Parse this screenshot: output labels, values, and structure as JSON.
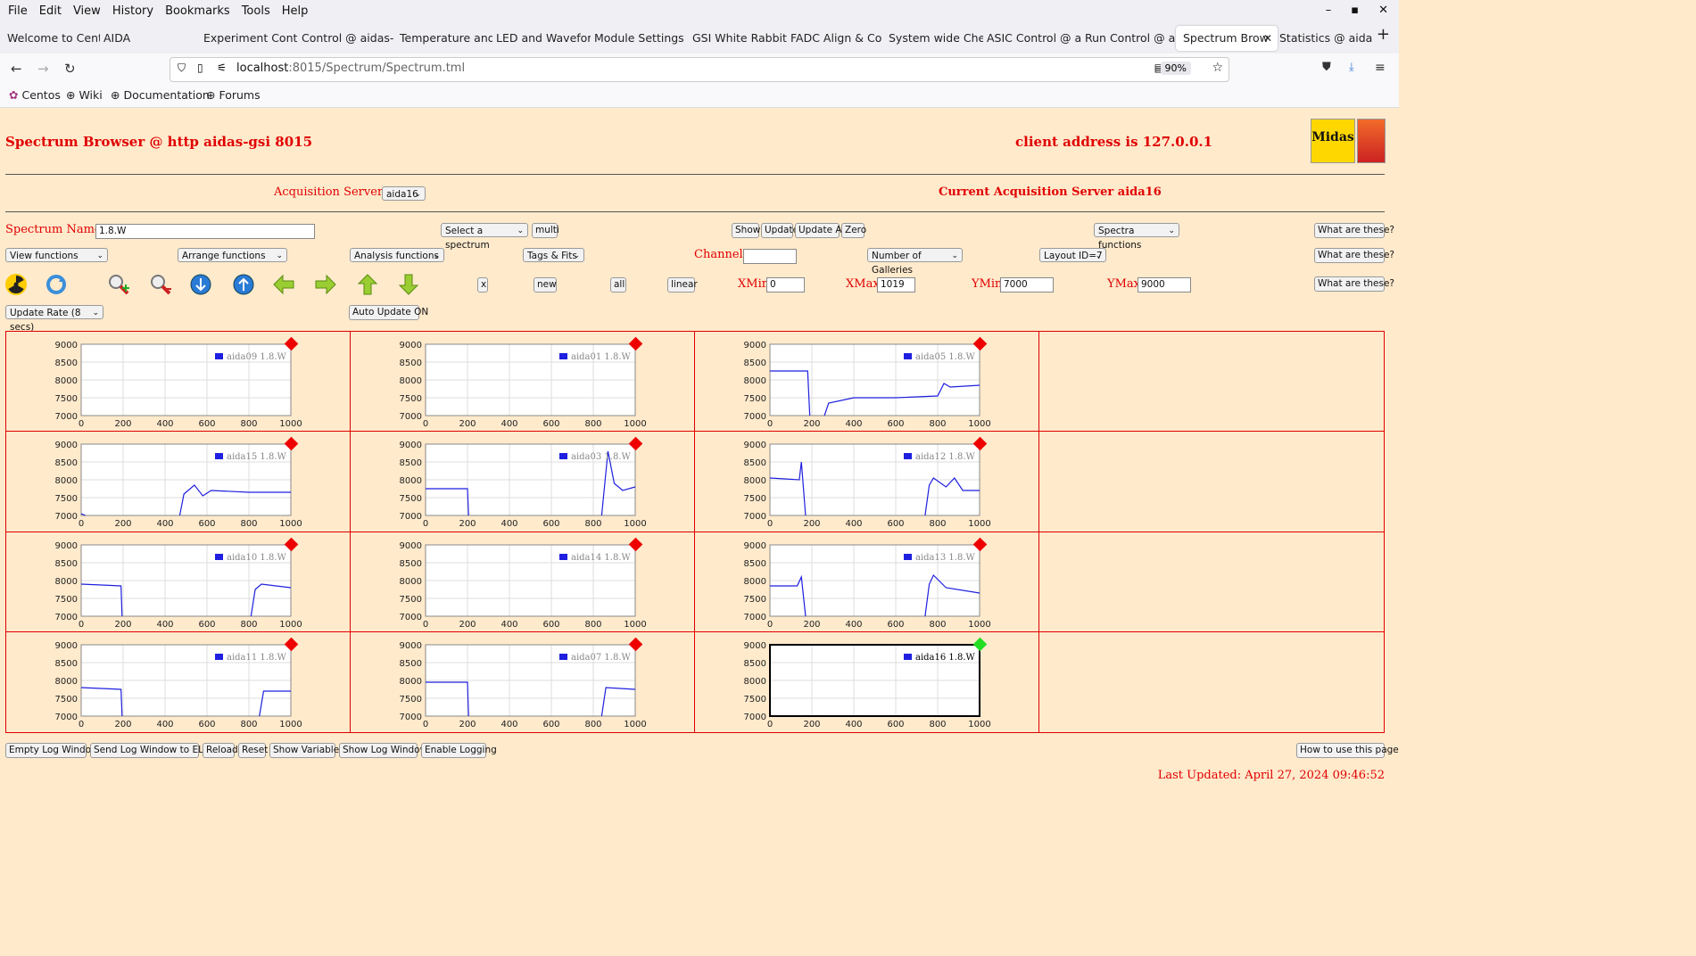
{
  "browser": {
    "menu": [
      "File",
      "Edit",
      "View",
      "History",
      "Bookmarks",
      "Tools",
      "Help"
    ],
    "tabs": [
      "Welcome to Cent",
      "AIDA",
      "Experiment Contr",
      "Control @ aidas-",
      "Temperature and",
      "LED and Wavefor",
      "Module Settings",
      "GSI White Rabbit",
      "FADC Align & Co",
      "System wide Che",
      "ASIC Control @ a",
      "Run Control @ ai",
      "Spectrum Brow",
      "Statistics @ aida"
    ],
    "active_tab": 12,
    "url_host": "localhost",
    "url_rest": ":8015/Spectrum/Spectrum.tml",
    "zoom": "90%",
    "bookmarks": [
      "Centos",
      "Wiki",
      "Documentation",
      "Forums"
    ]
  },
  "header": {
    "title": "Spectrum Browser @ http aidas-gsi 8015",
    "client": "client address is 127.0.0.1",
    "logo_text": "Midas"
  },
  "acq": {
    "label": "Acquisition Servers",
    "selected": "aida16",
    "current": "Current Acquisition Server aida16"
  },
  "controls": {
    "spectrum_name_label": "Spectrum Name:",
    "spectrum_name_value": "1.8.W",
    "select_spectrum": "Select a spectrum",
    "multi": "multi",
    "show": "Show",
    "update": "Update",
    "update_all": "Update All",
    "zero": "Zero",
    "spectra_functions": "Spectra functions",
    "what1": "What are these?",
    "view_functions": "View functions",
    "arrange_functions": "Arrange functions",
    "analysis_functions": "Analysis functions",
    "tags_fits": "Tags & Fits",
    "channel_label": "Channel:",
    "channel_value": "",
    "num_galleries": "Number of Galleries",
    "layout_id": "Layout ID=7",
    "what2": "What are these?",
    "x_btn": "x",
    "new_btn": "new",
    "all_btn": "all",
    "linear_btn": "linear",
    "xmin_label": "XMin",
    "xmin": "0",
    "xmax_label": "XMax",
    "xmax": "1019",
    "ymin_label": "YMin",
    "ymin": "7000",
    "ymax_label": "YMax",
    "ymax": "9000",
    "what3": "What are these?",
    "update_rate": "Update Rate (8 secs)",
    "auto_update": "Auto Update ON"
  },
  "chart_data": {
    "type": "line",
    "xlim": [
      0,
      1000
    ],
    "ylim": [
      7000,
      9000
    ],
    "x_ticks": [
      0,
      200,
      400,
      600,
      800,
      1000
    ],
    "y_ticks": [
      9000,
      8500,
      8000,
      7500,
      7000
    ],
    "panels": [
      {
        "name": "aida09 1.8.W",
        "status": "red",
        "segments": []
      },
      {
        "name": "aida01 1.8.W",
        "status": "red",
        "segments": []
      },
      {
        "name": "aida05 1.8.W",
        "status": "red",
        "segments": [
          [
            [
              0,
              8250
            ],
            [
              180,
              8250
            ],
            [
              190,
              7000
            ]
          ],
          [
            [
              260,
              7000
            ],
            [
              280,
              7350
            ],
            [
              400,
              7500
            ],
            [
              600,
              7500
            ],
            [
              800,
              7550
            ],
            [
              830,
              7900
            ],
            [
              860,
              7800
            ],
            [
              1000,
              7850
            ]
          ]
        ]
      },
      {
        "name": "aida15 1.8.W",
        "status": "red",
        "segments": [
          [
            [
              0,
              7050
            ],
            [
              20,
              7000
            ]
          ],
          [
            [
              470,
              7000
            ],
            [
              490,
              7600
            ],
            [
              540,
              7850
            ],
            [
              580,
              7550
            ],
            [
              620,
              7700
            ],
            [
              800,
              7650
            ],
            [
              1000,
              7650
            ]
          ]
        ]
      },
      {
        "name": "aida03 1.8.W",
        "status": "red",
        "segments": [
          [
            [
              0,
              7750
            ],
            [
              200,
              7750
            ],
            [
              205,
              7000
            ]
          ],
          [
            [
              840,
              7000
            ],
            [
              870,
              8800
            ],
            [
              900,
              7900
            ],
            [
              940,
              7700
            ],
            [
              1000,
              7800
            ]
          ]
        ]
      },
      {
        "name": "aida12 1.8.W",
        "status": "red",
        "segments": [
          [
            [
              0,
              8050
            ],
            [
              140,
              8000
            ],
            [
              150,
              8500
            ],
            [
              170,
              7000
            ]
          ],
          [
            [
              740,
              7000
            ],
            [
              760,
              7850
            ],
            [
              780,
              8050
            ],
            [
              840,
              7800
            ],
            [
              880,
              8050
            ],
            [
              920,
              7700
            ],
            [
              1000,
              7700
            ]
          ]
        ]
      },
      {
        "name": "aida10 1.8.W",
        "status": "red",
        "segments": [
          [
            [
              0,
              7900
            ],
            [
              190,
              7850
            ],
            [
              195,
              7000
            ]
          ],
          [
            [
              810,
              7000
            ],
            [
              830,
              7750
            ],
            [
              860,
              7900
            ],
            [
              1000,
              7800
            ]
          ]
        ]
      },
      {
        "name": "aida14 1.8.W",
        "status": "red",
        "segments": []
      },
      {
        "name": "aida13 1.8.W",
        "status": "red",
        "segments": [
          [
            [
              0,
              7850
            ],
            [
              130,
              7850
            ],
            [
              150,
              8100
            ],
            [
              170,
              7000
            ]
          ],
          [
            [
              740,
              7000
            ],
            [
              760,
              7900
            ],
            [
              780,
              8150
            ],
            [
              840,
              7800
            ],
            [
              1000,
              7650
            ]
          ]
        ]
      },
      {
        "name": "aida11 1.8.W",
        "status": "red",
        "segments": [
          [
            [
              0,
              7800
            ],
            [
              190,
              7750
            ],
            [
              195,
              7000
            ]
          ],
          [
            [
              850,
              7000
            ],
            [
              870,
              7700
            ],
            [
              1000,
              7700
            ]
          ]
        ]
      },
      {
        "name": "aida07 1.8.W",
        "status": "red",
        "segments": [
          [
            [
              0,
              7950
            ],
            [
              200,
              7950
            ],
            [
              205,
              7000
            ]
          ],
          [
            [
              840,
              7000
            ],
            [
              860,
              7800
            ],
            [
              1000,
              7750
            ]
          ]
        ]
      },
      {
        "name": "aida16 1.8.W",
        "status": "green",
        "segments": []
      }
    ]
  },
  "footer": {
    "buttons": [
      "Empty Log Window",
      "Send Log Window to ELog",
      "Reload",
      "Reset",
      "Show Variables",
      "Show Log Window",
      "Enable Logging"
    ],
    "how_to": "How to use this page",
    "last_updated": "Last Updated: April 27, 2024 09:46:52"
  }
}
